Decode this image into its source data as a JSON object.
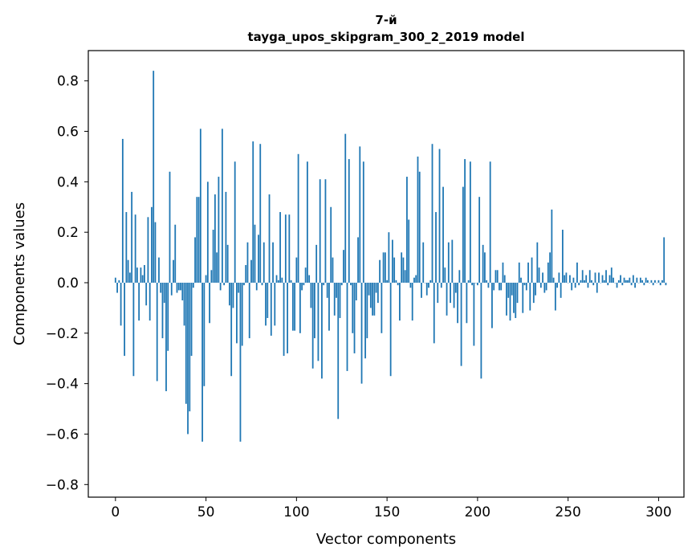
{
  "chart_data": {
    "type": "bar",
    "title_line1": "7-й",
    "title_line2": "tayga_upos_skipgram_300_2_2019 model",
    "xlabel": "Vector components",
    "ylabel": "Components values",
    "xlim": [
      -15,
      314
    ],
    "ylim": [
      -0.85,
      0.92
    ],
    "xticks": [
      0,
      50,
      100,
      150,
      200,
      250,
      300
    ],
    "xtick_labels": [
      "0",
      "50",
      "100",
      "150",
      "200",
      "250",
      "300"
    ],
    "yticks": [
      -0.8,
      -0.6,
      -0.4,
      -0.2,
      0.0,
      0.2,
      0.4,
      0.6,
      0.8
    ],
    "ytick_labels": [
      "−0.8",
      "−0.6",
      "−0.4",
      "−0.2",
      "0.0",
      "0.2",
      "0.4",
      "0.6",
      "0.8"
    ],
    "bar_color": "#1f77b4",
    "values": [
      0.02,
      -0.04,
      0.01,
      -0.17,
      0.57,
      -0.29,
      0.28,
      0.09,
      0.04,
      0.36,
      -0.37,
      0.27,
      0.06,
      -0.15,
      0.06,
      0.03,
      0.07,
      -0.09,
      0.26,
      -0.15,
      0.3,
      0.84,
      0.24,
      -0.39,
      0.1,
      -0.04,
      -0.22,
      -0.08,
      -0.43,
      -0.27,
      0.44,
      -0.05,
      0.09,
      0.23,
      -0.04,
      -0.03,
      -0.03,
      -0.07,
      -0.17,
      -0.48,
      -0.6,
      -0.51,
      -0.29,
      -0.02,
      0.18,
      0.34,
      0.34,
      0.61,
      -0.63,
      -0.41,
      0.03,
      0.4,
      -0.16,
      0.05,
      0.21,
      0.35,
      0.12,
      0.42,
      -0.03,
      0.61,
      -0.01,
      0.36,
      0.15,
      -0.09,
      -0.37,
      -0.1,
      0.48,
      -0.24,
      -0.04,
      -0.63,
      -0.25,
      -0.01,
      0.07,
      0.16,
      -0.22,
      0.09,
      0.56,
      0.23,
      -0.03,
      0.19,
      0.55,
      -0.01,
      0.16,
      -0.17,
      -0.14,
      0.35,
      -0.21,
      0.16,
      -0.17,
      0.03,
      0.01,
      0.28,
      0.02,
      -0.29,
      0.27,
      -0.28,
      0.27,
      0.01,
      -0.19,
      -0.19,
      0.1,
      0.51,
      -0.2,
      -0.03,
      -0.01,
      0.06,
      0.48,
      0.03,
      -0.1,
      -0.34,
      -0.22,
      0.15,
      -0.31,
      0.41,
      -0.38,
      -0.01,
      0.41,
      -0.06,
      -0.19,
      0.3,
      0.1,
      -0.13,
      -0.06,
      -0.54,
      -0.14,
      -0.01,
      0.13,
      0.59,
      -0.35,
      0.49,
      -0.01,
      -0.2,
      -0.28,
      -0.07,
      0.18,
      0.54,
      -0.4,
      0.48,
      -0.3,
      -0.22,
      -0.05,
      -0.1,
      -0.13,
      -0.13,
      -0.04,
      -0.08,
      0.09,
      -0.2,
      0.12,
      0.12,
      0.01,
      0.2,
      -0.37,
      0.17,
      0.1,
      0.01,
      -0.01,
      -0.15,
      0.12,
      0.1,
      0.05,
      0.42,
      0.25,
      -0.02,
      -0.15,
      0.02,
      0.03,
      0.5,
      0.44,
      -0.06,
      0.16,
      0.0,
      -0.05,
      -0.02,
      0.01,
      0.55,
      -0.24,
      0.28,
      -0.08,
      0.53,
      -0.02,
      0.38,
      0.06,
      -0.13,
      0.16,
      -0.08,
      0.17,
      -0.1,
      -0.04,
      -0.16,
      0.05,
      -0.33,
      0.38,
      0.49,
      -0.16,
      0.01,
      0.48,
      -0.01,
      -0.25,
      0.0,
      -0.01,
      0.34,
      -0.38,
      0.15,
      0.12,
      0.01,
      -0.02,
      0.48,
      -0.18,
      -0.03,
      0.05,
      0.05,
      -0.03,
      -0.03,
      0.08,
      0.03,
      -0.13,
      -0.06,
      -0.15,
      -0.05,
      -0.12,
      -0.14,
      -0.08,
      0.08,
      0.02,
      -0.12,
      -0.01,
      -0.03,
      0.08,
      -0.11,
      0.1,
      -0.08,
      -0.05,
      0.16,
      0.06,
      -0.02,
      0.04,
      -0.04,
      -0.03,
      0.08,
      0.12,
      0.29,
      0.02,
      -0.11,
      -0.02,
      0.04,
      -0.06,
      0.21,
      0.03,
      0.04,
      0.0,
      0.03,
      -0.03,
      0.02,
      -0.02,
      0.08,
      -0.01,
      0.01,
      0.05,
      0.01,
      0.03,
      -0.02,
      0.05,
      0.01,
      -0.01,
      0.04,
      -0.04,
      0.04,
      0.0,
      0.03,
      0.01,
      0.05,
      -0.01,
      0.03,
      0.06,
      0.02,
      0.0,
      -0.02,
      0.01,
      0.03,
      -0.01,
      0.02,
      0.01,
      0.01,
      0.02,
      -0.01,
      0.03,
      -0.02,
      0.02,
      0.0,
      0.02,
      0.01,
      -0.01,
      0.02,
      0.01,
      0.0,
      0.01,
      -0.01,
      0.01,
      0.0,
      0.01,
      -0.01,
      0.01,
      0.18,
      -0.01
    ]
  }
}
